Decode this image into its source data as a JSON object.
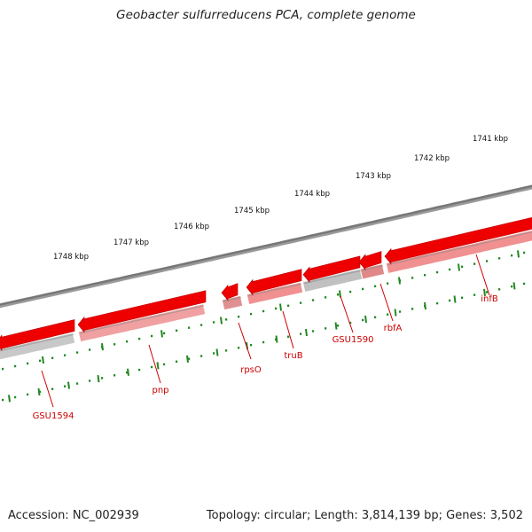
{
  "title": "Geobacter sulfurreducens PCA, complete genome",
  "footer": {
    "accession": "Accession: NC_002939",
    "summary": "Topology: circular; Length: 3,814,139 bp; Genes: 3,502"
  },
  "colors": {
    "gene_arrow": "#ee0000",
    "gene_shadow": "#f08080",
    "backbone": "#777777",
    "ticks": "#228822",
    "gene_label": "#cc0000"
  },
  "scale": {
    "unit": "kbp",
    "labels": [
      "1741 kbp",
      "1742 kbp",
      "1743 kbp",
      "1744 kbp",
      "1745 kbp",
      "1746 kbp",
      "1747 kbp",
      "1748 kbp"
    ]
  },
  "genes": [
    {
      "name": "infB",
      "strand": "-"
    },
    {
      "name": "rbfA",
      "strand": "-"
    },
    {
      "name": "GSU1590",
      "strand": "-"
    },
    {
      "name": "truB",
      "strand": "-"
    },
    {
      "name": "rpsO",
      "strand": "-"
    },
    {
      "name": "pnp",
      "strand": "-"
    },
    {
      "name": "GSU1594",
      "strand": "-"
    }
  ]
}
